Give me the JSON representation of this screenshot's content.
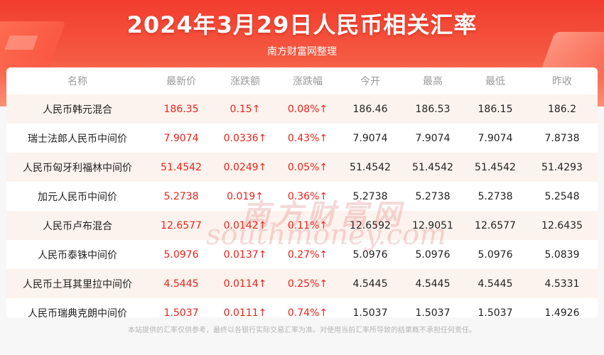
{
  "header": {
    "title": "2024年3月29日人民币相关汇率",
    "subtitle": "南方财富网整理"
  },
  "table": {
    "columns": [
      "名称",
      "最新价",
      "涨跌额",
      "涨跌幅",
      "今开",
      "最高",
      "最低",
      "昨收"
    ],
    "rows": [
      {
        "name": "人民币韩元混合",
        "latest": "186.35",
        "change": "0.15↑",
        "pct": "0.08%↑",
        "open": "186.46",
        "high": "186.53",
        "low": "186.15",
        "prev": "186.2"
      },
      {
        "name": "瑞士法郎人民币中间价",
        "latest": "7.9074",
        "change": "0.0336↑",
        "pct": "0.43%↑",
        "open": "7.9074",
        "high": "7.9074",
        "low": "7.9074",
        "prev": "7.8738"
      },
      {
        "name": "人民币匈牙利福林中间价",
        "latest": "51.4542",
        "change": "0.0249↑",
        "pct": "0.05%↑",
        "open": "51.4542",
        "high": "51.4542",
        "low": "51.4542",
        "prev": "51.4293"
      },
      {
        "name": "加元人民币中间价",
        "latest": "5.2738",
        "change": "0.019↑",
        "pct": "0.36%↑",
        "open": "5.2738",
        "high": "5.2738",
        "low": "5.2738",
        "prev": "5.2548"
      },
      {
        "name": "人民币卢布混合",
        "latest": "12.6577",
        "change": "0.0142↑",
        "pct": "0.11%↑",
        "open": "12.6592",
        "high": "12.9051",
        "low": "12.6577",
        "prev": "12.6435"
      },
      {
        "name": "人民币泰铢中间价",
        "latest": "5.0976",
        "change": "0.0137↑",
        "pct": "0.27%↑",
        "open": "5.0976",
        "high": "5.0976",
        "low": "5.0976",
        "prev": "5.0839"
      },
      {
        "name": "人民币土耳其里拉中间价",
        "latest": "4.5445",
        "change": "0.0114↑",
        "pct": "0.25%↑",
        "open": "4.5445",
        "high": "4.5445",
        "low": "4.5445",
        "prev": "4.5331"
      },
      {
        "name": "人民币瑞典克朗中间价",
        "latest": "1.5037",
        "change": "0.0111↑",
        "pct": "0.74%↑",
        "open": "1.5037",
        "high": "1.5037",
        "low": "1.5037",
        "prev": "1.4926"
      }
    ]
  },
  "watermark": {
    "cn": "南方财富网",
    "en": "southmoney.com"
  },
  "footer": {
    "disclaimer": "本站提供的汇率仅供参考，最终以各银行实际交易汇率为准。对使用当前汇率所导致的结果概不承担任何责任。"
  },
  "colors": {
    "header_red": "#f23c2e",
    "up_red": "#e8231b",
    "stripe": "#fdf3ee"
  }
}
